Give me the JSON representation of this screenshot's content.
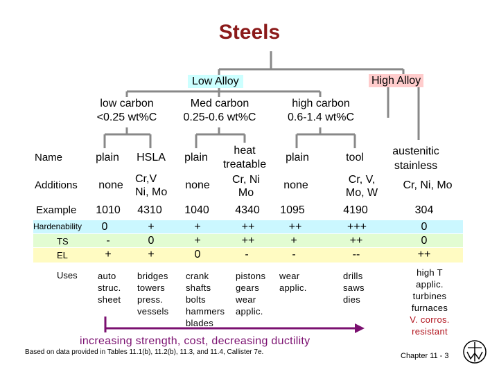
{
  "title": "Steels",
  "tree": {
    "low_alloy": "Low Alloy",
    "high_alloy": "High Alloy",
    "low_carbon": {
      "name": "low carbon",
      "range": "<0.25 wt%C"
    },
    "med_carbon": {
      "name": "Med carbon",
      "range": "0.25-0.6 wt%C"
    },
    "high_carbon": {
      "name": "high carbon",
      "range": "0.6-1.4 wt%C"
    }
  },
  "row_labels": {
    "name": "Name",
    "additions": "Additions",
    "example": "Example",
    "hardenability": "Hardenability",
    "ts": "TS",
    "el": "EL",
    "uses": "Uses"
  },
  "columns": [
    {
      "name": "plain",
      "additions": "none",
      "example": "1010",
      "hardenability": "0",
      "ts": "-",
      "el": "+",
      "uses": [
        "auto",
        "struc.",
        "sheet"
      ]
    },
    {
      "name": "HSLA",
      "additions": "Cr,V Ni, Mo",
      "example": "4310",
      "hardenability": "+",
      "ts": "0",
      "el": "+",
      "uses": [
        "bridges",
        "towers",
        "press.",
        "vessels"
      ]
    },
    {
      "name": "plain",
      "additions": "none",
      "example": "1040",
      "hardenability": "+",
      "ts": "+",
      "el": "0",
      "uses": [
        "crank",
        "shafts",
        "bolts",
        "hammers",
        "blades"
      ]
    },
    {
      "name": "heat treatable",
      "additions": "Cr, Ni Mo",
      "example": "4340",
      "hardenability": "++",
      "ts": "++",
      "el": "-",
      "uses": [
        "pistons",
        "gears",
        "wear",
        "applic."
      ]
    },
    {
      "name": "plain",
      "additions": "none",
      "example": "1095",
      "hardenability": "++",
      "ts": "+",
      "el": "-",
      "uses": [
        "wear",
        "applic."
      ]
    },
    {
      "name": "tool",
      "additions": "Cr, V, Mo, W",
      "example": "4190",
      "hardenability": "+++",
      "ts": "++",
      "el": "--",
      "uses": [
        "drills",
        "saws",
        "dies"
      ]
    },
    {
      "name": "austenitic stainless",
      "additions": "Cr, Ni, Mo",
      "example": "304",
      "hardenability": "0",
      "ts": "0",
      "el": "++",
      "uses": [
        "high T",
        "applic.",
        "turbines",
        "furnaces",
        "V. corros.",
        "resistant"
      ]
    }
  ],
  "trend_text": "increasing strength, cost, decreasing ductility",
  "footnote": "Based on data provided in Tables 11.1(b), 11.2(b), 11.3, and 11.4, Callister 7e.",
  "chapter": "Chapter 11 -  3",
  "colors": {
    "title": "#8b1a1a",
    "low_alloy_bg": "#ccffff",
    "high_alloy_bg": "#ffcccc",
    "hardenability_band": "#cbf7ff",
    "ts_band": "#e2fcd2",
    "el_band": "#fffbc2",
    "arrow": "#7b1070",
    "tree_lines": "#888888"
  }
}
